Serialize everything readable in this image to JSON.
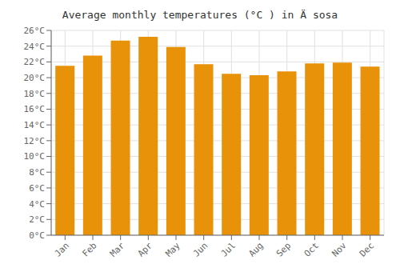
{
  "chart_data": {
    "type": "bar",
    "title": "Average monthly temperatures (°C ) in Ä sosa",
    "categories": [
      "Jan",
      "Feb",
      "Mar",
      "Apr",
      "May",
      "Jun",
      "Jul",
      "Aug",
      "Sep",
      "Oct",
      "Nov",
      "Dec"
    ],
    "values": [
      21.5,
      22.8,
      24.7,
      25.2,
      23.9,
      21.7,
      20.5,
      20.3,
      20.8,
      21.8,
      21.9,
      21.4
    ],
    "color": "#E8920A",
    "ylim": [
      0,
      26
    ],
    "yticks": [
      {
        "value": 0,
        "label": "0°C"
      },
      {
        "value": 2,
        "label": "2°C"
      },
      {
        "value": 4,
        "label": "4°C"
      },
      {
        "value": 6,
        "label": "6°C"
      },
      {
        "value": 8,
        "label": "8°C"
      },
      {
        "value": 10,
        "label": "10°C"
      },
      {
        "value": 12,
        "label": "12°C"
      },
      {
        "value": 14,
        "label": "14°C"
      },
      {
        "value": 16,
        "label": "16°C"
      },
      {
        "value": 18,
        "label": "18°C"
      },
      {
        "value": 20,
        "label": "20°C"
      },
      {
        "value": 22,
        "label": "22°C"
      },
      {
        "value": 24,
        "label": "24°C"
      },
      {
        "value": 26,
        "label": "26°C"
      }
    ],
    "grid": true
  }
}
